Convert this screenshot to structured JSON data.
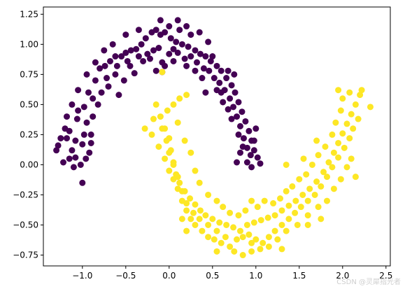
{
  "chart_data": {
    "type": "scatter",
    "title": "",
    "xlabel": "",
    "ylabel": "",
    "xlim": [
      -1.45,
      2.55
    ],
    "ylim": [
      -0.84,
      1.31
    ],
    "xticks": [
      -1.0,
      -0.5,
      0.0,
      0.5,
      1.0,
      1.5,
      2.0,
      2.5
    ],
    "xtick_labels": [
      "−1.0",
      "−0.5",
      "0.0",
      "0.5",
      "1.0",
      "1.5",
      "2.0",
      "2.5"
    ],
    "yticks": [
      -0.75,
      -0.5,
      -0.25,
      0.0,
      0.25,
      0.5,
      0.75,
      1.0,
      1.25
    ],
    "ytick_labels": [
      "−0.75",
      "−0.50",
      "−0.25",
      "0.00",
      "0.25",
      "0.50",
      "0.75",
      "1.00",
      "1.25"
    ],
    "grid": false,
    "legend": "none",
    "series": [
      {
        "class": 0,
        "color": "#440154",
        "points": [
          [
            -1.28,
            0.16
          ],
          [
            -1.18,
            0.22
          ],
          [
            -1.12,
            0.12
          ],
          [
            -1.08,
            0.06
          ],
          [
            -1.15,
            0.28
          ],
          [
            -1.06,
            0.38
          ],
          [
            -1.0,
            0.17
          ],
          [
            -0.98,
            0.48
          ],
          [
            -0.93,
            0.6
          ],
          [
            -0.88,
            0.55
          ],
          [
            -0.85,
            0.7
          ],
          [
            -0.8,
            0.8
          ],
          [
            -0.74,
            0.82
          ],
          [
            -0.68,
            0.86
          ],
          [
            -0.62,
            0.9
          ],
          [
            -0.55,
            0.9
          ],
          [
            -0.5,
            0.93
          ],
          [
            -0.44,
            0.95
          ],
          [
            -0.38,
            0.96
          ],
          [
            -0.32,
            1.0
          ],
          [
            -0.27,
            1.05
          ],
          [
            -0.2,
            1.1
          ],
          [
            -0.15,
            1.12
          ],
          [
            -0.1,
            1.08
          ],
          [
            -0.05,
            1.1
          ],
          [
            0.02,
            1.05
          ],
          [
            0.08,
            1.02
          ],
          [
            0.15,
            1.0
          ],
          [
            0.22,
            0.98
          ],
          [
            0.3,
            0.95
          ],
          [
            0.36,
            0.92
          ],
          [
            0.42,
            0.9
          ],
          [
            0.48,
            0.86
          ],
          [
            0.55,
            0.82
          ],
          [
            0.6,
            0.78
          ],
          [
            0.66,
            0.72
          ],
          [
            0.72,
            0.66
          ],
          [
            0.76,
            0.6
          ],
          [
            0.8,
            0.52
          ],
          [
            0.84,
            0.44
          ],
          [
            0.88,
            0.36
          ],
          [
            0.92,
            0.28
          ],
          [
            0.95,
            0.2
          ],
          [
            0.98,
            0.12
          ],
          [
            1.02,
            0.06
          ],
          [
            1.05,
            0.01
          ],
          [
            -1.0,
            -0.15
          ],
          [
            -1.22,
            0.02
          ],
          [
            -1.1,
            -0.02
          ],
          [
            -1.05,
            0.45
          ],
          [
            -0.95,
            0.35
          ],
          [
            -0.9,
            0.25
          ],
          [
            -0.78,
            0.6
          ],
          [
            -0.7,
            0.65
          ],
          [
            -0.62,
            0.75
          ],
          [
            -0.58,
            0.58
          ],
          [
            -0.52,
            0.7
          ],
          [
            -0.45,
            0.82
          ],
          [
            -0.4,
            0.76
          ],
          [
            -0.3,
            0.86
          ],
          [
            -0.25,
            0.92
          ],
          [
            -0.18,
            0.95
          ],
          [
            -0.12,
            0.97
          ],
          [
            -0.08,
            0.85
          ],
          [
            0.0,
            0.92
          ],
          [
            0.05,
            0.96
          ],
          [
            0.1,
            0.93
          ],
          [
            0.18,
            0.88
          ],
          [
            0.25,
            0.9
          ],
          [
            0.32,
            0.85
          ],
          [
            0.4,
            0.8
          ],
          [
            0.46,
            0.78
          ],
          [
            0.52,
            0.72
          ],
          [
            0.58,
            0.68
          ],
          [
            0.64,
            0.62
          ],
          [
            0.7,
            0.55
          ],
          [
            0.74,
            0.48
          ],
          [
            0.78,
            0.4
          ],
          [
            0.82,
            0.32
          ],
          [
            0.86,
            0.22
          ],
          [
            0.9,
            0.14
          ],
          [
            0.94,
            0.08
          ],
          [
            0.98,
            0.2
          ],
          [
            1.0,
            0.3
          ],
          [
            0.75,
            0.75
          ],
          [
            0.68,
            0.78
          ],
          [
            0.6,
            0.6
          ],
          [
            0.5,
            0.9
          ],
          [
            0.45,
            1.02
          ],
          [
            0.35,
            1.1
          ],
          [
            0.25,
            1.08
          ],
          [
            0.12,
            1.12
          ],
          [
            0.0,
            1.15
          ],
          [
            -0.1,
            1.2
          ],
          [
            -0.35,
            1.12
          ],
          [
            -0.5,
            1.08
          ],
          [
            -0.65,
            1.0
          ],
          [
            -0.75,
            0.95
          ],
          [
            -0.85,
            0.85
          ],
          [
            -0.95,
            0.75
          ],
          [
            -1.05,
            0.62
          ],
          [
            -1.12,
            0.5
          ],
          [
            -1.18,
            0.4
          ],
          [
            -1.2,
            0.3
          ],
          [
            -1.25,
            0.22
          ],
          [
            -1.15,
            0.05
          ],
          [
            -0.92,
            0.1
          ],
          [
            -0.88,
            0.4
          ],
          [
            -0.82,
            0.5
          ],
          [
            -0.72,
            0.72
          ],
          [
            -0.6,
            0.82
          ],
          [
            -0.48,
            0.86
          ],
          [
            -0.35,
            0.9
          ],
          [
            -0.22,
            0.88
          ],
          [
            -0.15,
            0.78
          ],
          [
            -0.05,
            0.82
          ],
          [
            0.05,
            0.86
          ],
          [
            0.2,
            0.82
          ],
          [
            0.3,
            0.78
          ],
          [
            0.38,
            0.72
          ],
          [
            0.55,
            0.62
          ],
          [
            0.62,
            0.52
          ],
          [
            0.68,
            0.46
          ],
          [
            0.72,
            0.38
          ],
          [
            0.8,
            0.25
          ],
          [
            0.85,
            0.15
          ],
          [
            0.9,
            0.02
          ],
          [
            0.95,
            -0.02
          ],
          [
            0.82,
            0.1
          ],
          [
            0.78,
            0.02
          ],
          [
            -0.08,
            0.77
          ],
          [
            0.1,
            1.2
          ],
          [
            0.2,
            1.15
          ],
          [
            0.42,
            0.6
          ],
          [
            -1.3,
            0.12
          ],
          [
            -1.08,
            0.2
          ],
          [
            -0.98,
            0.25
          ],
          [
            -0.9,
            0.18
          ],
          [
            -1.02,
            0.0
          ],
          [
            -0.96,
            0.05
          ]
        ]
      },
      {
        "class": 1,
        "color": "#fde725",
        "points": [
          [
            -0.08,
            0.77
          ],
          [
            -0.15,
            0.5
          ],
          [
            -0.1,
            0.4
          ],
          [
            -0.05,
            0.3
          ],
          [
            0.0,
            0.22
          ],
          [
            0.02,
            0.12
          ],
          [
            0.05,
            0.02
          ],
          [
            0.08,
            -0.08
          ],
          [
            0.12,
            -0.15
          ],
          [
            0.18,
            -0.22
          ],
          [
            0.24,
            -0.28
          ],
          [
            0.3,
            -0.33
          ],
          [
            0.36,
            -0.38
          ],
          [
            0.42,
            -0.42
          ],
          [
            0.5,
            -0.45
          ],
          [
            0.58,
            -0.48
          ],
          [
            0.66,
            -0.5
          ],
          [
            0.74,
            -0.52
          ],
          [
            0.82,
            -0.55
          ],
          [
            0.9,
            -0.5
          ],
          [
            0.98,
            -0.48
          ],
          [
            1.06,
            -0.46
          ],
          [
            1.14,
            -0.44
          ],
          [
            1.22,
            -0.42
          ],
          [
            1.3,
            -0.38
          ],
          [
            1.38,
            -0.34
          ],
          [
            1.46,
            -0.3
          ],
          [
            1.54,
            -0.25
          ],
          [
            1.62,
            -0.2
          ],
          [
            1.7,
            -0.14
          ],
          [
            1.78,
            -0.06
          ],
          [
            1.84,
            0.02
          ],
          [
            1.9,
            0.1
          ],
          [
            1.95,
            0.18
          ],
          [
            2.0,
            0.26
          ],
          [
            2.05,
            0.34
          ],
          [
            2.1,
            0.42
          ],
          [
            2.15,
            0.5
          ],
          [
            2.2,
            0.58
          ],
          [
            2.32,
            0.48
          ],
          [
            -0.28,
            0.3
          ],
          [
            -0.2,
            0.25
          ],
          [
            -0.12,
            0.15
          ],
          [
            -0.05,
            0.05
          ],
          [
            0.0,
            -0.05
          ],
          [
            0.05,
            -0.12
          ],
          [
            0.1,
            -0.2
          ],
          [
            0.15,
            -0.3
          ],
          [
            0.2,
            -0.38
          ],
          [
            0.25,
            -0.45
          ],
          [
            0.3,
            -0.5
          ],
          [
            0.38,
            -0.55
          ],
          [
            0.45,
            -0.6
          ],
          [
            0.52,
            -0.62
          ],
          [
            0.6,
            -0.65
          ],
          [
            0.7,
            -0.68
          ],
          [
            0.78,
            -0.62
          ],
          [
            0.85,
            -0.6
          ],
          [
            0.92,
            -0.58
          ],
          [
            1.0,
            -0.62
          ],
          [
            1.08,
            -0.65
          ],
          [
            1.15,
            -0.6
          ],
          [
            1.22,
            -0.55
          ],
          [
            1.3,
            -0.5
          ],
          [
            1.38,
            -0.45
          ],
          [
            1.45,
            -0.4
          ],
          [
            1.52,
            -0.35
          ],
          [
            1.6,
            -0.3
          ],
          [
            1.68,
            -0.25
          ],
          [
            1.75,
            -0.18
          ],
          [
            1.82,
            -0.1
          ],
          [
            1.88,
            -0.02
          ],
          [
            1.95,
            0.06
          ],
          [
            2.02,
            0.14
          ],
          [
            2.08,
            0.22
          ],
          [
            2.12,
            0.3
          ],
          [
            2.18,
            0.38
          ],
          [
            1.95,
            0.62
          ],
          [
            2.0,
            0.55
          ],
          [
            2.1,
            0.05
          ],
          [
            2.15,
            -0.1
          ],
          [
            2.05,
            -0.02
          ],
          [
            1.98,
            -0.12
          ],
          [
            1.9,
            -0.2
          ],
          [
            1.82,
            -0.3
          ],
          [
            1.72,
            -0.35
          ],
          [
            1.6,
            -0.42
          ],
          [
            1.48,
            -0.5
          ],
          [
            1.35,
            -0.55
          ],
          [
            1.25,
            -0.62
          ],
          [
            1.15,
            -0.68
          ],
          [
            1.05,
            -0.7
          ],
          [
            0.95,
            -0.72
          ],
          [
            0.85,
            -0.75
          ],
          [
            0.75,
            -0.72
          ],
          [
            0.65,
            -0.6
          ],
          [
            0.55,
            -0.55
          ],
          [
            0.45,
            -0.5
          ],
          [
            0.35,
            -0.45
          ],
          [
            0.28,
            -0.4
          ],
          [
            0.2,
            -0.32
          ],
          [
            0.15,
            -0.22
          ],
          [
            0.1,
            -0.1
          ],
          [
            0.05,
            0.0
          ],
          [
            0.0,
            0.1
          ],
          [
            -0.03,
            0.2
          ],
          [
            -0.08,
            0.3
          ],
          [
            -0.18,
            0.38
          ],
          [
            -0.02,
            0.45
          ],
          [
            0.05,
            0.5
          ],
          [
            0.12,
            0.55
          ],
          [
            0.2,
            0.58
          ],
          [
            0.1,
            0.35
          ],
          [
            0.18,
            0.2
          ],
          [
            0.25,
            0.1
          ],
          [
            0.3,
            -0.05
          ],
          [
            0.35,
            -0.15
          ],
          [
            0.45,
            -0.25
          ],
          [
            0.55,
            -0.3
          ],
          [
            0.62,
            -0.35
          ],
          [
            0.7,
            -0.4
          ],
          [
            0.8,
            -0.42
          ],
          [
            0.88,
            -0.38
          ],
          [
            0.95,
            -0.3
          ],
          [
            1.02,
            -0.35
          ],
          [
            1.1,
            -0.3
          ],
          [
            1.2,
            -0.32
          ],
          [
            1.28,
            -0.28
          ],
          [
            1.35,
            -0.22
          ],
          [
            1.42,
            -0.18
          ],
          [
            1.5,
            -0.12
          ],
          [
            1.58,
            -0.08
          ],
          [
            1.65,
            0.0
          ],
          [
            1.72,
            0.08
          ],
          [
            1.8,
            0.15
          ],
          [
            1.88,
            0.25
          ],
          [
            1.92,
            0.35
          ],
          [
            1.98,
            0.45
          ],
          [
            2.08,
            0.6
          ],
          [
            2.22,
            0.62
          ],
          [
            0.2,
            -0.55
          ],
          [
            0.15,
            -0.45
          ],
          [
            1.3,
            -0.7
          ],
          [
            0.55,
            -0.72
          ],
          [
            0.95,
            -0.65
          ],
          [
            1.6,
            -0.5
          ],
          [
            1.75,
            -0.45
          ],
          [
            1.35,
            0.0
          ],
          [
            1.55,
            0.05
          ],
          [
            1.7,
            0.2
          ]
        ]
      }
    ]
  },
  "watermark": "CSDN @灵犀指光者"
}
